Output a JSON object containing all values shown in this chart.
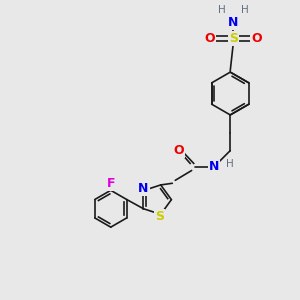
{
  "bg_color": "#e8e8e8",
  "bond_color": "#1a1a1a",
  "bond_width": 1.2,
  "atom_colors": {
    "N": "#0000ee",
    "S": "#cccc00",
    "O": "#ee0000",
    "F": "#dd00dd",
    "H": "#607080",
    "C": "#1a1a1a"
  },
  "fs": 9,
  "fs_small": 7.5
}
